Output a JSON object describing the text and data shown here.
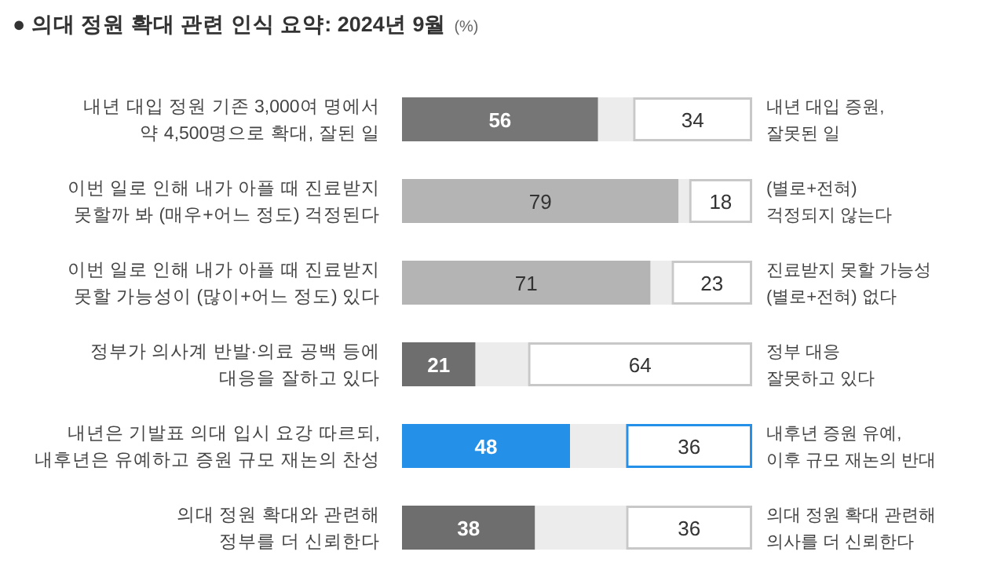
{
  "chart_data": {
    "type": "bar",
    "orientation": "horizontal",
    "stacked": true,
    "title": "● 의대 정원 확대 관련 인식 요약: 2024년 9월",
    "xlabel": "(%)",
    "categories": [
      "내년 대입 정원 기존 3,000여 명에서\n약 4,500명으로 확대, 잘된 일",
      "이번 일로 인해 내가 아플 때 진료받지\n못할까 봐 (매우+어느 정도) 걱정된다",
      "이번 일로 인해 내가 아플 때 진료받지\n못할 가능성이 (많이+어느 정도) 있다",
      "정부가 의사계 반발·의료 공백 등에\n대응을 잘하고 있다",
      "내년은 기발표 의대 입시 요강 따르되,\n내후년은 유예하고 증원 규모 재논의 찬성",
      "의대 정원 확대와 관련해\n정부를 더 신뢰한다"
    ],
    "y2_categories": [
      "내년 대입 증원,\n잘못된 일",
      "(별로+전혀)\n걱정되지 않는다",
      "진료받지 못할 가능성\n(별로+전혀) 없다",
      "정부 대응\n잘못하고 있다",
      "내후년 증원 유예,\n이후 규모 재논의 반대",
      "의대 정원 확대 관련해\n의사를 더 신뢰한다"
    ],
    "xlim": [
      0,
      100
    ],
    "tick_labels": "y",
    "series": [
      {
        "colors": [
          "#767676",
          "#b4b4b4",
          "#b4b4b4",
          "#6e6e6e",
          "#2490e8",
          "#6e6e6e"
        ],
        "values": [
          56,
          79,
          71,
          21,
          48,
          38
        ],
        "value_labels": [
          "56",
          "79",
          "71",
          "21",
          "48",
          "38"
        ]
      },
      {
        "color": "#ececec",
        "values": [
          10,
          3,
          6,
          15,
          16,
          26
        ]
      },
      {
        "color": "#ffffff",
        "values": [
          34,
          18,
          23,
          64,
          36,
          36
        ],
        "value_labels": [
          "34",
          "18",
          "23",
          "64",
          "36",
          "36"
        ]
      }
    ]
  }
}
